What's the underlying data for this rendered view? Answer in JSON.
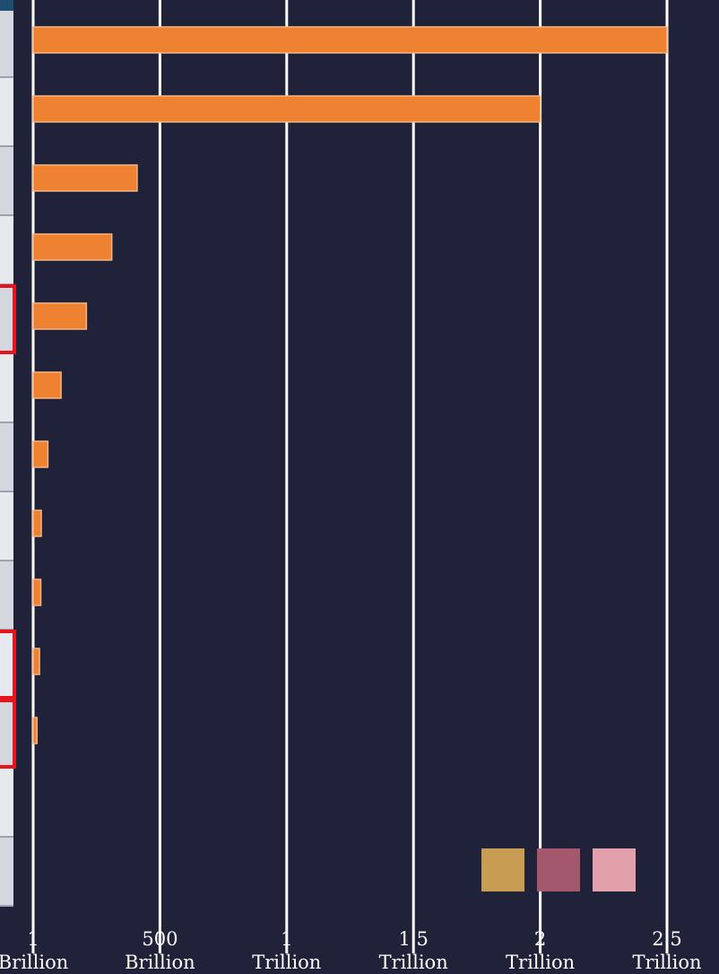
{
  "chart_data": {
    "type": "bar",
    "orientation": "horizontal",
    "categories": [
      "",
      "",
      "",
      "",
      "",
      "",
      "",
      "",
      "",
      "",
      "",
      "",
      ""
    ],
    "values": [
      2500000000000,
      2000000000000,
      410000000000,
      310000000000,
      210000000000,
      110000000000,
      58000000000,
      32000000000,
      30000000000,
      25000000000,
      15000000000,
      0,
      0
    ],
    "xlim": [
      0,
      2500000000000
    ],
    "grid": true,
    "bar_color": "#ef8231",
    "x_ticks": [
      {
        "value": 1000000000,
        "line1": "1",
        "line2": "Brillion"
      },
      {
        "value": 500000000000,
        "line1": "500",
        "line2": "Brillion"
      },
      {
        "value": 1000000000000,
        "line1": "1",
        "line2": "Trillion"
      },
      {
        "value": 1500000000000,
        "line1": "1.5",
        "line2": "Trillion"
      },
      {
        "value": 2000000000000,
        "line1": "2",
        "line2": "Trillion"
      },
      {
        "value": 2500000000000,
        "line1": "2.5",
        "line2": "Trillion"
      }
    ],
    "highlighted_rows": [
      4,
      9,
      10
    ],
    "legend": {
      "placement": "bottom-right",
      "swatches": [
        "#c99c53",
        "#a3586e",
        "#e2a1aa"
      ]
    }
  },
  "colors": {
    "background": "#1f2238",
    "gridline": "#ffffff",
    "highlight": "#e8141d"
  }
}
